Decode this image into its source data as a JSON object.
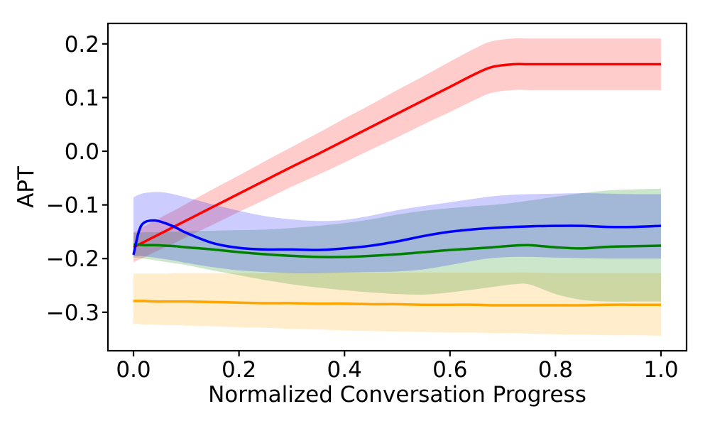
{
  "figure": {
    "background_color": "#ffffff"
  },
  "chart_data": {
    "type": "line",
    "title": "",
    "xlabel": "Normalized Conversation Progress",
    "ylabel": "APT",
    "grid": false,
    "legend": "none",
    "xlim": [
      -0.0485,
      1.0485
    ],
    "ylim": [
      -0.3717,
      0.2381
    ],
    "xticks": {
      "values": [
        0.0,
        0.2,
        0.4,
        0.6,
        0.8,
        1.0
      ],
      "labels": [
        "0.0",
        "0.2",
        "0.4",
        "0.6",
        "0.8",
        "1.0"
      ]
    },
    "yticks": {
      "values": [
        0.2,
        0.1,
        0.0,
        -0.1,
        -0.2,
        -0.3
      ],
      "labels": [
        "0.2",
        "0.1",
        "0.0",
        "−0.1",
        "−0.2",
        "−0.3"
      ]
    },
    "band_alpha": 0.2,
    "line_width": 3.5,
    "x": [
      0,
      0.01,
      0.02,
      0.04,
      0.06,
      0.08,
      0.1,
      0.15,
      0.2,
      0.25,
      0.3,
      0.35,
      0.4,
      0.45,
      0.5,
      0.55,
      0.6,
      0.65,
      0.68,
      0.72,
      0.75,
      0.8,
      0.85,
      0.9,
      0.95,
      1.0
    ],
    "series": [
      {
        "name": "red-series",
        "color": "#ff0000",
        "y": [
          -0.179,
          -0.174,
          -0.169,
          -0.159,
          -0.149,
          -0.139,
          -0.129,
          -0.104,
          -0.079,
          -0.054,
          -0.029,
          -0.005,
          0.02,
          0.045,
          0.07,
          0.095,
          0.12,
          0.145,
          0.157,
          0.162,
          0.162,
          0.162,
          0.162,
          0.162,
          0.162,
          0.162
        ],
        "band_upper": [
          -0.151,
          -0.146,
          -0.14,
          -0.13,
          -0.119,
          -0.109,
          -0.098,
          -0.071,
          -0.045,
          -0.018,
          0.008,
          0.034,
          0.061,
          0.087,
          0.114,
          0.14,
          0.167,
          0.193,
          0.205,
          0.21,
          0.21,
          0.21,
          0.21,
          0.21,
          0.21,
          0.21
        ],
        "band_lower": [
          -0.207,
          -0.202,
          -0.198,
          -0.188,
          -0.179,
          -0.17,
          -0.16,
          -0.137,
          -0.113,
          -0.09,
          -0.066,
          -0.044,
          -0.021,
          0.003,
          0.026,
          0.05,
          0.073,
          0.097,
          0.109,
          0.114,
          0.114,
          0.114,
          0.114,
          0.114,
          0.114,
          0.114
        ]
      },
      {
        "name": "orange-series",
        "color": "#ffa500",
        "y": [
          -0.279,
          -0.279,
          -0.279,
          -0.28,
          -0.28,
          -0.28,
          -0.28,
          -0.281,
          -0.282,
          -0.283,
          -0.283,
          -0.284,
          -0.284,
          -0.285,
          -0.285,
          -0.286,
          -0.286,
          -0.286,
          -0.287,
          -0.287,
          -0.287,
          -0.287,
          -0.287,
          -0.286,
          -0.286,
          -0.286
        ],
        "band_upper": [
          -0.228,
          -0.228,
          -0.228,
          -0.228,
          -0.228,
          -0.227,
          -0.227,
          -0.227,
          -0.227,
          -0.227,
          -0.226,
          -0.226,
          -0.226,
          -0.226,
          -0.226,
          -0.226,
          -0.226,
          -0.226,
          -0.226,
          -0.226,
          -0.226,
          -0.227,
          -0.227,
          -0.227,
          -0.227,
          -0.227
        ],
        "band_lower": [
          -0.322,
          -0.322,
          -0.323,
          -0.323,
          -0.324,
          -0.324,
          -0.325,
          -0.326,
          -0.328,
          -0.329,
          -0.331,
          -0.332,
          -0.334,
          -0.335,
          -0.336,
          -0.337,
          -0.338,
          -0.338,
          -0.339,
          -0.339,
          -0.34,
          -0.341,
          -0.342,
          -0.343,
          -0.343,
          -0.344
        ]
      },
      {
        "name": "green-series",
        "color": "#008000",
        "y": [
          -0.174,
          -0.174,
          -0.175,
          -0.175,
          -0.176,
          -0.177,
          -0.179,
          -0.183,
          -0.188,
          -0.192,
          -0.195,
          -0.197,
          -0.197,
          -0.195,
          -0.192,
          -0.188,
          -0.184,
          -0.181,
          -0.179,
          -0.176,
          -0.175,
          -0.179,
          -0.181,
          -0.178,
          -0.177,
          -0.176
        ],
        "band_upper": [
          -0.152,
          -0.152,
          -0.151,
          -0.151,
          -0.15,
          -0.15,
          -0.149,
          -0.148,
          -0.147,
          -0.146,
          -0.143,
          -0.139,
          -0.134,
          -0.127,
          -0.118,
          -0.111,
          -0.106,
          -0.102,
          -0.1,
          -0.096,
          -0.092,
          -0.085,
          -0.078,
          -0.073,
          -0.071,
          -0.07
        ],
        "band_lower": [
          -0.198,
          -0.199,
          -0.2,
          -0.203,
          -0.206,
          -0.209,
          -0.212,
          -0.222,
          -0.231,
          -0.24,
          -0.248,
          -0.254,
          -0.259,
          -0.263,
          -0.266,
          -0.267,
          -0.263,
          -0.257,
          -0.253,
          -0.248,
          -0.248,
          -0.266,
          -0.277,
          -0.28,
          -0.28,
          -0.28
        ]
      },
      {
        "name": "blue-series",
        "color": "#0000ff",
        "y": [
          -0.193,
          -0.15,
          -0.133,
          -0.129,
          -0.134,
          -0.142,
          -0.152,
          -0.171,
          -0.18,
          -0.183,
          -0.183,
          -0.184,
          -0.181,
          -0.176,
          -0.168,
          -0.158,
          -0.15,
          -0.145,
          -0.143,
          -0.141,
          -0.14,
          -0.139,
          -0.139,
          -0.141,
          -0.141,
          -0.139
        ],
        "band_upper": [
          -0.086,
          -0.081,
          -0.078,
          -0.076,
          -0.077,
          -0.081,
          -0.086,
          -0.099,
          -0.111,
          -0.121,
          -0.127,
          -0.13,
          -0.128,
          -0.12,
          -0.11,
          -0.102,
          -0.095,
          -0.088,
          -0.084,
          -0.081,
          -0.08,
          -0.079,
          -0.078,
          -0.079,
          -0.08,
          -0.08
        ],
        "band_lower": [
          -0.196,
          -0.195,
          -0.196,
          -0.198,
          -0.201,
          -0.204,
          -0.208,
          -0.216,
          -0.222,
          -0.225,
          -0.227,
          -0.227,
          -0.226,
          -0.225,
          -0.224,
          -0.22,
          -0.212,
          -0.203,
          -0.199,
          -0.197,
          -0.197,
          -0.198,
          -0.199,
          -0.2,
          -0.2,
          -0.2
        ]
      }
    ]
  }
}
